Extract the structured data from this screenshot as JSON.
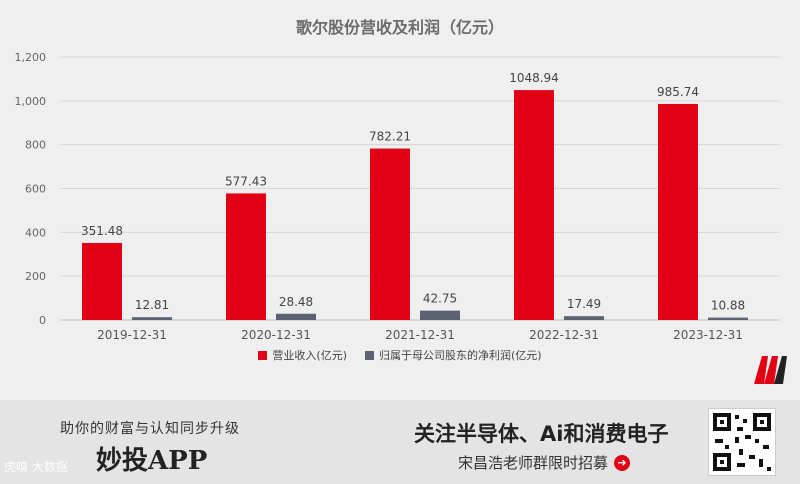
{
  "chart_data": {
    "type": "bar",
    "title": "歌尔股份营收及利润（亿元）",
    "categories": [
      "2019-12-31",
      "2020-12-31",
      "2021-12-31",
      "2022-12-31",
      "2023-12-31"
    ],
    "series": [
      {
        "name": "营业收入(亿元)",
        "values": [
          351.48,
          577.43,
          782.21,
          1048.94,
          985.74
        ],
        "labels": [
          "351.48",
          "577.43",
          "782.21",
          "1048.94",
          "985.74"
        ],
        "color": "#e10014"
      },
      {
        "name": "归属于母公司股东的净利润(亿元)",
        "values": [
          12.81,
          28.48,
          42.75,
          17.49,
          10.88
        ],
        "labels": [
          "12.81",
          "28.48",
          "42.75",
          "17.49",
          "10.88"
        ],
        "color": "#5b6272"
      }
    ],
    "ylim": [
      0,
      1200
    ],
    "yticks": [
      0,
      200,
      400,
      600,
      800,
      1000,
      1200
    ],
    "ytick_labels": [
      "0",
      "200",
      "400",
      "600",
      "800",
      "1,000",
      "1,200"
    ],
    "grid": true,
    "legend": "bottom"
  },
  "banner": {
    "slogan": "助你的财富与认知同步升级",
    "app_name": "妙投APP",
    "watermark": "虎嗅 大数据",
    "headline": "关注半导体、Ai和消费电子",
    "sub": "宋昌浩老师群限时招募",
    "arrow_icon": "arrow-right-circle-icon",
    "qr_icon": "qr-code-icon"
  }
}
